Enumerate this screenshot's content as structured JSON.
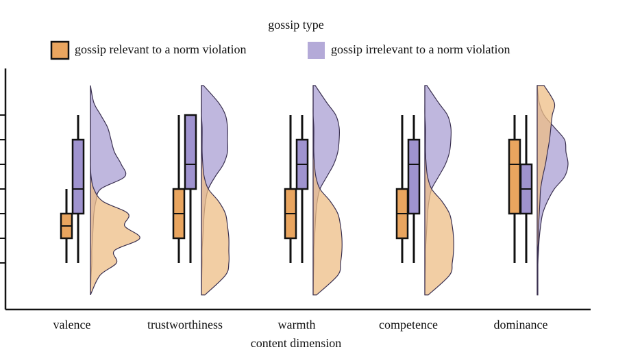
{
  "chart_data": {
    "type": "raincloud",
    "legend_title": "gossip type",
    "x_label": "content dimension",
    "categories": [
      "valence",
      "trustworthiness",
      "warmth",
      "competence",
      "dominance"
    ],
    "ylim": [
      -0.89,
      8.89
    ],
    "yticks": [
      1,
      2,
      3,
      4,
      5,
      6,
      7
    ],
    "density_y": [
      -0.3,
      0.5,
      1,
      1.5,
      2,
      2.5,
      3,
      3.5,
      4,
      4.5,
      5,
      5.5,
      6,
      6.5,
      7,
      7.5,
      8.2
    ],
    "series": [
      {
        "name": "gossip relevant to a norm violation",
        "color": "#e9a55f",
        "density_color": "#eebd85",
        "min": [
          1,
          1,
          1,
          1,
          1
        ],
        "q1": [
          2,
          2,
          2,
          2,
          3
        ],
        "median": [
          2.5,
          3,
          3,
          3,
          5
        ],
        "q3": [
          3,
          4,
          4,
          4,
          6
        ],
        "max": [
          4,
          7,
          7,
          7,
          7
        ],
        "density": [
          [
            0,
            0.14,
            0.38,
            0.35,
            0.72,
            0.5,
            0.55,
            0.18,
            0.05,
            0.01,
            0,
            0,
            0,
            0,
            0,
            0,
            0
          ],
          [
            0.05,
            0.35,
            0.4,
            0.4,
            0.4,
            0.38,
            0.35,
            0.25,
            0.1,
            0.04,
            0.02,
            0.01,
            0.01,
            0.01,
            0,
            0,
            0
          ],
          [
            0.05,
            0.36,
            0.4,
            0.42,
            0.42,
            0.4,
            0.36,
            0.25,
            0.1,
            0.04,
            0.02,
            0.01,
            0.01,
            0.01,
            0,
            0,
            0
          ],
          [
            0.05,
            0.36,
            0.4,
            0.42,
            0.42,
            0.4,
            0.36,
            0.25,
            0.1,
            0.04,
            0.02,
            0.01,
            0.01,
            0.01,
            0,
            0,
            0
          ],
          [
            0.01,
            0.01,
            0.01,
            0.01,
            0.02,
            0.02,
            0.03,
            0.04,
            0.05,
            0.08,
            0.12,
            0.15,
            0.18,
            0.2,
            0.22,
            0.25,
            0.1
          ]
        ]
      },
      {
        "name": "gossip irrelevant to a norm violation",
        "color": "#9f93cf",
        "density_color": "#b4aad8",
        "min": [
          1,
          1,
          1,
          1,
          1
        ],
        "q1": [
          3,
          4,
          4,
          3,
          3
        ],
        "median": [
          4,
          5,
          5,
          5,
          4
        ],
        "q3": [
          6,
          7,
          6,
          6,
          5
        ],
        "max": [
          7,
          7,
          7,
          7,
          7
        ],
        "density": [
          [
            0,
            0.01,
            0.02,
            0.02,
            0.03,
            0.04,
            0.05,
            0.08,
            0.15,
            0.5,
            0.45,
            0.35,
            0.3,
            0.25,
            0.15,
            0.05,
            0
          ],
          [
            0,
            0.005,
            0.01,
            0.01,
            0.02,
            0.03,
            0.04,
            0.06,
            0.1,
            0.2,
            0.32,
            0.38,
            0.38,
            0.38,
            0.35,
            0.25,
            0.03
          ],
          [
            0,
            0.005,
            0.01,
            0.01,
            0.02,
            0.03,
            0.04,
            0.06,
            0.1,
            0.2,
            0.3,
            0.36,
            0.38,
            0.38,
            0.33,
            0.2,
            0.03
          ],
          [
            0,
            0.005,
            0.01,
            0.01,
            0.02,
            0.03,
            0.04,
            0.06,
            0.1,
            0.2,
            0.3,
            0.36,
            0.38,
            0.38,
            0.33,
            0.2,
            0.03
          ],
          [
            0,
            0.005,
            0.01,
            0.02,
            0.03,
            0.05,
            0.08,
            0.15,
            0.25,
            0.4,
            0.45,
            0.42,
            0.4,
            0.25,
            0.1,
            0.03,
            0
          ]
        ]
      }
    ]
  }
}
